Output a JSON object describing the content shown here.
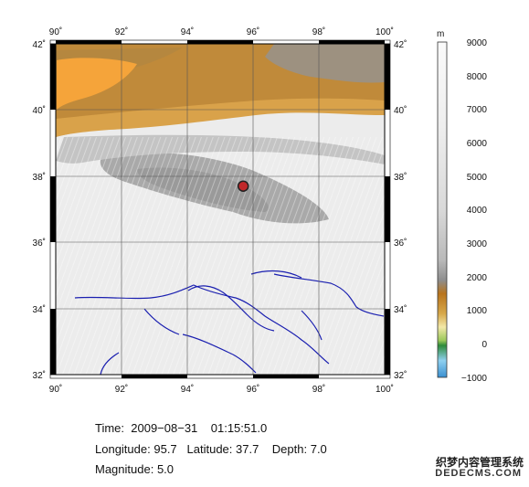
{
  "map": {
    "lon_ticks": [
      "90˚",
      "92˚",
      "94˚",
      "96˚",
      "98˚",
      "100˚"
    ],
    "lat_ticks": [
      "42˚",
      "40˚",
      "38˚",
      "36˚",
      "34˚",
      "32˚"
    ],
    "lon_range": [
      90,
      100
    ],
    "lat_range": [
      32,
      42
    ],
    "epicenter": {
      "lon": 95.7,
      "lat": 37.7,
      "color": "#c0282a"
    }
  },
  "colorbar": {
    "unit": "m",
    "ticks": [
      "9000",
      "8000",
      "7000",
      "6000",
      "5000",
      "4000",
      "3000",
      "2000",
      "1000",
      "0",
      "−1000"
    ],
    "range": [
      -1000,
      9000
    ]
  },
  "info": {
    "time_label": "Time:",
    "date": "2009−08−31",
    "clock": "01:15:51.0",
    "longitude_label": "Longitude:",
    "longitude": "95.7",
    "latitude_label": "Latitude:",
    "latitude": "37.7",
    "depth_label": "Depth:",
    "depth": "7.0",
    "magnitude_label": "Magnitude:",
    "magnitude": "5.0"
  },
  "watermark": {
    "line1": "织梦内容管理系统",
    "line2": "DEDECMS.COM"
  }
}
